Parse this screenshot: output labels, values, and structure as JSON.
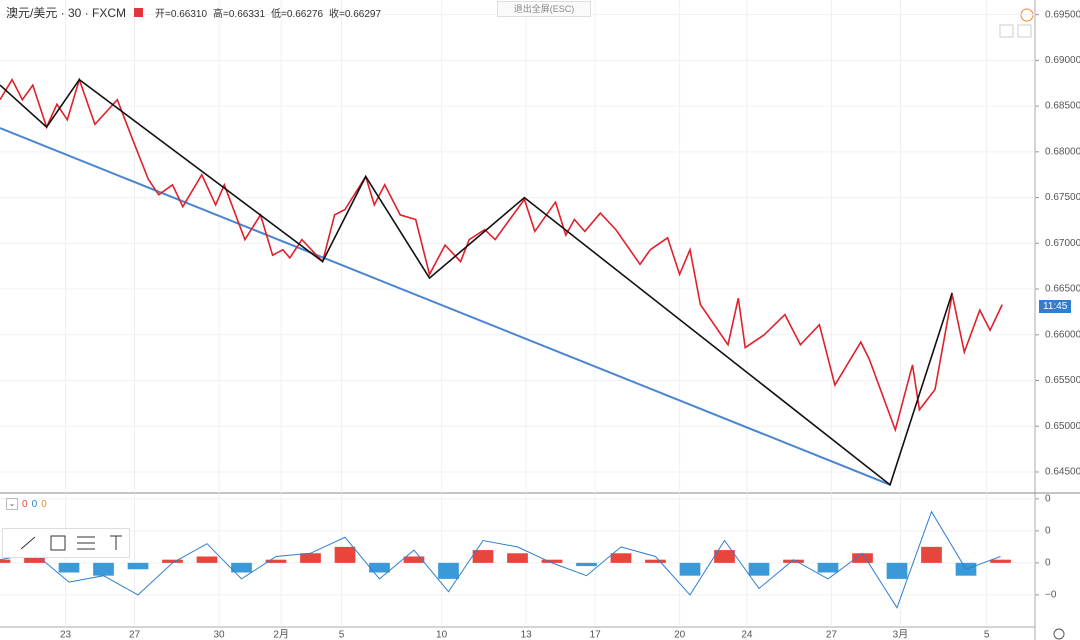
{
  "header": {
    "symbol": "澳元/美元 · 30 · FXCM",
    "ohlc": [
      "开=0.66310",
      "高=0.66331",
      "低=0.66276",
      "收=0.66297"
    ],
    "fullscreen_button": "退出全屏(ESC)",
    "countdown": "11:45",
    "indicator_values": [
      "0",
      "0",
      "0"
    ]
  },
  "chart_data": [
    {
      "type": "line",
      "grid": true,
      "xlim": [
        0,
        60
      ],
      "xticks": [
        {
          "value": 3.8,
          "label": "23"
        },
        {
          "value": 7.8,
          "label": "27"
        },
        {
          "value": 12.7,
          "label": "30"
        },
        {
          "value": 16.3,
          "label": "2月"
        },
        {
          "value": 19.8,
          "label": "5"
        },
        {
          "value": 25.6,
          "label": "10"
        },
        {
          "value": 30.5,
          "label": "13"
        },
        {
          "value": 34.5,
          "label": "17"
        },
        {
          "value": 39.4,
          "label": "20"
        },
        {
          "value": 43.3,
          "label": "24"
        },
        {
          "value": 48.2,
          "label": "27"
        },
        {
          "value": 52.2,
          "label": "3月"
        },
        {
          "value": 57.2,
          "label": "5"
        }
      ],
      "ylim": [
        0.6427,
        0.6966
      ],
      "yticks": [
        {
          "value": 0.695,
          "label": "0.69500"
        },
        {
          "value": 0.69,
          "label": "0.69000"
        },
        {
          "value": 0.685,
          "label": "0.68500"
        },
        {
          "value": 0.68,
          "label": "0.68000"
        },
        {
          "value": 0.675,
          "label": "0.67500"
        },
        {
          "value": 0.67,
          "label": "0.67000"
        },
        {
          "value": 0.665,
          "label": "0.66500"
        },
        {
          "value": 0.66,
          "label": "0.66000"
        },
        {
          "value": 0.655,
          "label": "0.65500"
        },
        {
          "value": 0.65,
          "label": "0.65000"
        },
        {
          "value": 0.645,
          "label": "0.64500"
        }
      ],
      "series": [
        {
          "color": "#4a86d0",
          "x": [
            0,
            51.6
          ],
          "values": [
            0.6826,
            0.6436
          ]
        },
        {
          "color": "#e0202a",
          "x": [
            0,
            0.7,
            1.3,
            1.9,
            2.7,
            3.3,
            3.9,
            4.6,
            5.5,
            6.8,
            7.7,
            8.6,
            9.2,
            10.0,
            10.6,
            11.7,
            12.5,
            13.0,
            14.2,
            15.1,
            15.8,
            16.4,
            16.8,
            17.5,
            18.7,
            19.4,
            20.0,
            21.2,
            21.7,
            22.3,
            23.2,
            24.1,
            24.9,
            25.8,
            26.7,
            27.2,
            28.1,
            28.7,
            30.4,
            31.0,
            32.2,
            32.8,
            33.3,
            33.9,
            34.8,
            35.7,
            37.1,
            37.7,
            38.7,
            39.4,
            40.0,
            40.6,
            41.3,
            42.2,
            42.8,
            43.2,
            44.3,
            45.5,
            46.4,
            47.5,
            48.4,
            49.9,
            50.4,
            51.9,
            52.9,
            53.3,
            54.2,
            55.2,
            55.9,
            56.8,
            57.4,
            58.1
          ],
          "values": [
            0.6857,
            0.6879,
            0.6857,
            0.6873,
            0.6827,
            0.6852,
            0.6835,
            0.6879,
            0.683,
            0.6857,
            0.6813,
            0.677,
            0.6753,
            0.6764,
            0.674,
            0.6775,
            0.6742,
            0.6764,
            0.6704,
            0.6731,
            0.6687,
            0.6693,
            0.6684,
            0.6704,
            0.668,
            0.6731,
            0.6737,
            0.6773,
            0.6742,
            0.6764,
            0.6731,
            0.6726,
            0.6666,
            0.6698,
            0.668,
            0.6704,
            0.6715,
            0.6704,
            0.6748,
            0.6713,
            0.6745,
            0.6709,
            0.6726,
            0.6713,
            0.6733,
            0.6715,
            0.6677,
            0.6693,
            0.6706,
            0.6666,
            0.6693,
            0.6633,
            0.6614,
            0.6589,
            0.664,
            0.6586,
            0.66,
            0.6622,
            0.6589,
            0.6611,
            0.6545,
            0.6592,
            0.6573,
            0.6496,
            0.6567,
            0.6518,
            0.654,
            0.6644,
            0.6581,
            0.6627,
            0.6605,
            0.6633
          ]
        },
        {
          "color": "#111111",
          "x": [
            0,
            2.7,
            4.6,
            18.7,
            21.2,
            24.9,
            30.4,
            51.6,
            55.2
          ],
          "values": [
            0.6873,
            0.6827,
            0.6879,
            0.668,
            0.6773,
            0.6662,
            0.675,
            0.6436,
            0.6646
          ]
        }
      ]
    },
    {
      "type": "bar",
      "grid": true,
      "ylim": [
        -1.94,
        2.12
      ],
      "yticks": [
        {
          "value": 2,
          "label": "0"
        },
        {
          "value": 1,
          "label": "0"
        },
        0,
        {
          "value": -1,
          "label": "−0"
        }
      ],
      "colors": {
        "positive": "#e8453c",
        "negative": "#3a9ad9"
      },
      "x": [
        0,
        2,
        4,
        6,
        8,
        10,
        12,
        14,
        16,
        18,
        20,
        22,
        24,
        26,
        28,
        30,
        32,
        34,
        36,
        38,
        40,
        42,
        44,
        46,
        48,
        50,
        52,
        54,
        56,
        58
      ],
      "series": [
        {
          "values": [
            0.1,
            0.2,
            -0.3,
            -0.4,
            -0.2,
            0.1,
            0.2,
            -0.3,
            0.1,
            0.3,
            0.5,
            -0.3,
            0.2,
            -0.5,
            0.4,
            0.3,
            0.1,
            -0.1,
            0.3,
            0.1,
            -0.4,
            0.4,
            -0.4,
            0.1,
            -0.3,
            0.3,
            -0.5,
            0.5,
            -0.4,
            0.1
          ]
        },
        {
          "color": "#2f7fd1",
          "values": [
            0.1,
            0.3,
            -0.6,
            -0.4,
            -1.0,
            0.0,
            0.6,
            -0.5,
            0.2,
            0.3,
            0.8,
            -0.5,
            0.4,
            -0.9,
            0.7,
            0.5,
            0.0,
            -0.4,
            0.5,
            0.2,
            -1.0,
            0.7,
            -0.8,
            0.1,
            -0.5,
            0.3,
            -1.4,
            1.6,
            -0.2,
            0.2
          ]
        }
      ]
    }
  ]
}
